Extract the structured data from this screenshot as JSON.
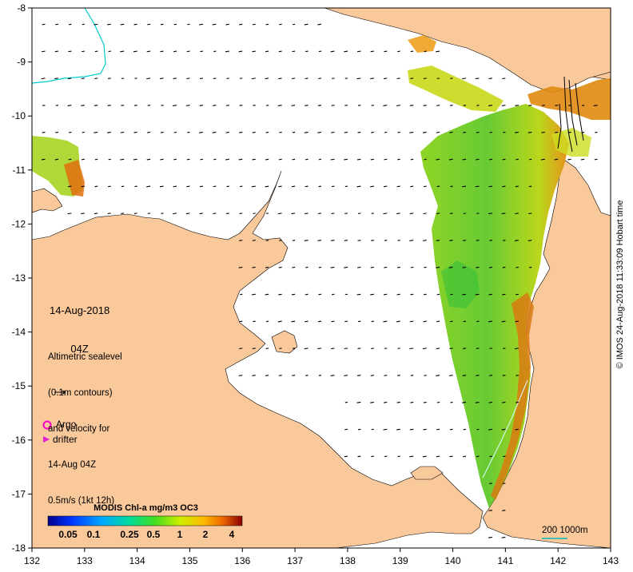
{
  "colors": {
    "land": "#f9c89b",
    "sea": "#ffffff",
    "coast": "#000000",
    "argo": "#ff00cc",
    "drifter": "#e020d0",
    "contour": "#00cccc",
    "scale_bar": "#00bbbb"
  },
  "axes": {
    "x_ticks": [
      "132",
      "133",
      "134",
      "135",
      "136",
      "137",
      "138",
      "139",
      "140",
      "141",
      "142",
      "143"
    ],
    "y_ticks": [
      "-8",
      "-9",
      "-10",
      "-11",
      "-12",
      "-13",
      "-14",
      "-15",
      "-16",
      "-17",
      "-18"
    ]
  },
  "annotations": {
    "date": "14-Aug-2018",
    "time": "04Z",
    "altimetry_line1": "Altimetric sealevel",
    "altimetry_line2": "(0.1m contours)",
    "altimetry_line3": "and velocity for",
    "altimetry_line4": "14-Aug 04Z",
    "velocity_scale": "0.5m/s (1kt 12h)"
  },
  "legend": {
    "argo": "Argo",
    "drifter": "drifter"
  },
  "colorbar": {
    "title": "MODIS Chl-a mg/m3 OC3",
    "labels": [
      "0.05",
      "0.1",
      "0.25",
      "0.5",
      "1",
      "2",
      "4"
    ]
  },
  "scale_label": "200  1000m",
  "credit": "© IMOS 24-Aug-2018 11:33:09 Hobart time",
  "velocity_field": {
    "lon_range": [
      132,
      143
    ],
    "lat_range": [
      -8,
      -18
    ],
    "spacing_deg": 0.5,
    "mean_u": -0.05,
    "mean_v": 0.02
  }
}
